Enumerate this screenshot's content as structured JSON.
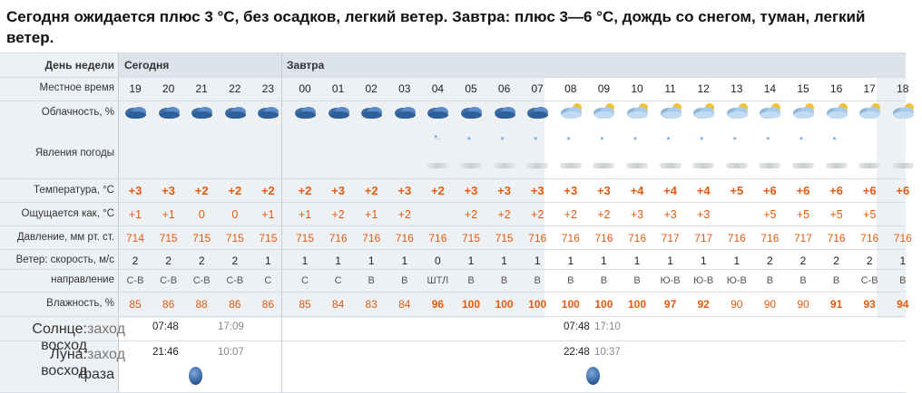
{
  "headline": "Сегодня ожидается плюс 3 °С, без осадков, легкий ветер. Завтра: плюс 3—6 °С, дождь со снегом, туман, легкий ветер.",
  "labels": {
    "weekday": "День недели",
    "local_time": "Местное время",
    "cloudiness": "Облачность, %",
    "phenomena": "Явления погоды",
    "temperature": "Температура, °С",
    "feels_like": "Ощущается как, °С",
    "pressure": "Давление, мм рт. ст.",
    "wind_speed": "Ветер: скорость, м/с",
    "wind_dir": "направление",
    "humidity": "Влажность, %",
    "sun": "Солнце: восход",
    "sun_set": "заход",
    "moon": "Луна: восход",
    "moon_set": "заход",
    "phase": "фаза"
  },
  "days": {
    "today": "Сегодня",
    "tomorrow": "Завтра"
  },
  "hours": [
    "19",
    "20",
    "21",
    "22",
    "23",
    "00",
    "01",
    "02",
    "03",
    "04",
    "05",
    "06",
    "07",
    "08",
    "09",
    "10",
    "11",
    "12",
    "13",
    "14",
    "15",
    "16",
    "17",
    "18"
  ],
  "temperature": [
    "+3",
    "+3",
    "+2",
    "+2",
    "+2",
    "+2",
    "+3",
    "+2",
    "+3",
    "+2",
    "+3",
    "+3",
    "+3",
    "+3",
    "+3",
    "+4",
    "+4",
    "+4",
    "+5",
    "+6",
    "+6",
    "+6",
    "+6",
    "+6"
  ],
  "feels_like": [
    "+1",
    "+1",
    "0",
    "0",
    "+1",
    "+1",
    "+2",
    "+1",
    "+2",
    "",
    "+2",
    "+2",
    "+2",
    "+2",
    "+2",
    "+3",
    "+3",
    "+3",
    "",
    "+5",
    "+5",
    "+5",
    "+5",
    ""
  ],
  "pressure": [
    "714",
    "715",
    "715",
    "715",
    "715",
    "715",
    "716",
    "716",
    "716",
    "716",
    "715",
    "715",
    "716",
    "716",
    "716",
    "716",
    "717",
    "717",
    "716",
    "716",
    "717",
    "716",
    "716",
    "716"
  ],
  "wind_speed": [
    "2",
    "2",
    "2",
    "2",
    "1",
    "1",
    "1",
    "1",
    "1",
    "0",
    "1",
    "1",
    "1",
    "1",
    "1",
    "1",
    "1",
    "1",
    "1",
    "2",
    "2",
    "2",
    "2",
    "1"
  ],
  "wind_dir": [
    "С-В",
    "С-В",
    "С-В",
    "С-В",
    "С",
    "С",
    "С",
    "В",
    "В",
    "ШТЛ",
    "В",
    "В",
    "В",
    "В",
    "В",
    "В",
    "Ю-В",
    "Ю-В",
    "Ю-В",
    "В",
    "В",
    "В",
    "С-В",
    "В"
  ],
  "humidity": [
    "85",
    "86",
    "88",
    "86",
    "86",
    "85",
    "84",
    "83",
    "84",
    "96",
    "100",
    "100",
    "100",
    "100",
    "100",
    "100",
    "97",
    "92",
    "90",
    "90",
    "90",
    "91",
    "93",
    "94"
  ],
  "humidity_bold": [
    false,
    false,
    false,
    false,
    false,
    false,
    false,
    false,
    false,
    true,
    true,
    true,
    true,
    true,
    true,
    true,
    true,
    true,
    false,
    false,
    false,
    true,
    true,
    true
  ],
  "sun": {
    "today_rise": "07:48",
    "today_set": "17:09",
    "tomorrow_rise": "07:48",
    "tomorrow_set": "17:10"
  },
  "moon": {
    "today_rise": "21:46",
    "today_set": "10:07",
    "tomorrow_rise": "22:48",
    "tomorrow_set": "10:37"
  },
  "colors": {
    "accent": "#e25b10",
    "header_bg": "#dde3ea",
    "row_bg": "#eef1f4",
    "snow": "#3a8bd8"
  },
  "icons": {
    "cloud": "cloud-icon",
    "partly_cloudy": "partly-cloudy-icon",
    "snow": "snowflake-icon",
    "fog": "fog-icon",
    "moon": "moon-phase-icon"
  }
}
